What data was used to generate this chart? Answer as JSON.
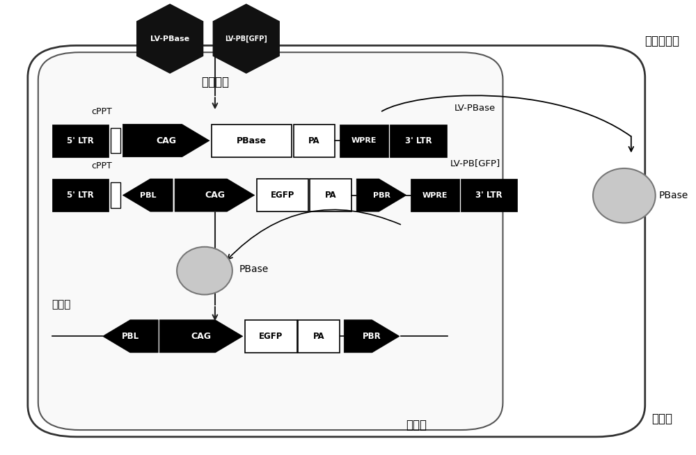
{
  "bg_color": "#ffffff",
  "title_spermatogonial": "精原干细胞",
  "title_cytoplasm": "细胞质",
  "title_nucleus": "细胠核",
  "title_viral": "病毒感染",
  "title_genome": "基因组",
  "hex1_label": "LV-PBase",
  "hex2_label": "LV-PB[GFP]",
  "lv_pbase_label": "LV-PBase",
  "lv_pbgfp_label": "LV-PB[GFP]",
  "pbase_label": "PBase",
  "cppt_label": "cPPT"
}
